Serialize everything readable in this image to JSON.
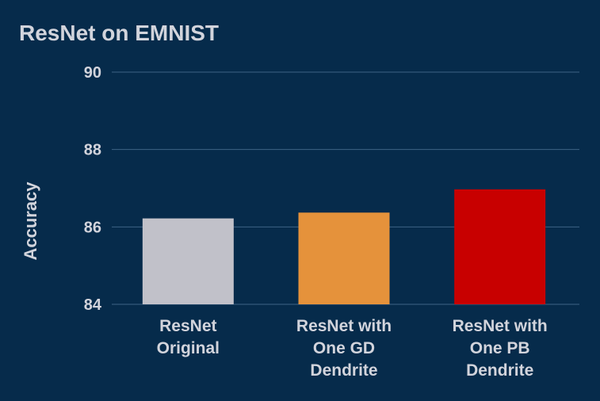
{
  "chart_data": {
    "type": "bar",
    "title": "ResNet on EMNIST",
    "xlabel": "",
    "ylabel": "Accuracy",
    "ylim": [
      84,
      90
    ],
    "yticks": [
      84,
      86,
      88,
      90
    ],
    "grid": true,
    "legend": "none",
    "categories": [
      [
        "ResNet",
        "Original"
      ],
      [
        "ResNet with",
        "One GD",
        "Dendrite"
      ],
      [
        "ResNet with",
        "One PB",
        "Dendrite"
      ]
    ],
    "values": [
      86.22,
      86.37,
      86.97
    ],
    "colors": [
      "#c1c1c9",
      "#e5923b",
      "#c80000"
    ]
  }
}
